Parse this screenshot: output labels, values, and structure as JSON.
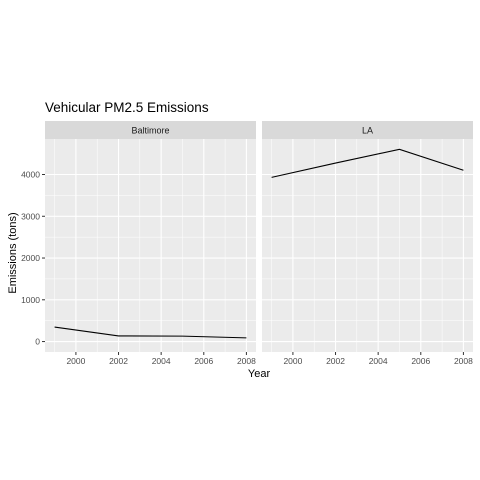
{
  "chart_data": {
    "type": "line",
    "title": "Vehicular PM2.5 Emissions",
    "xlabel": "Year",
    "ylabel": "Emissions (tons)",
    "facet_by": [
      "Baltimore",
      "LA"
    ],
    "xlim": [
      1998.55,
      2008.45
    ],
    "ylim": [
      -250,
      4850
    ],
    "x_ticks": [
      2000,
      2002,
      2004,
      2006,
      2008
    ],
    "y_ticks": [
      0,
      1000,
      2000,
      3000,
      4000
    ],
    "grid": true,
    "series": [
      {
        "name": "Baltimore",
        "x": [
          1999,
          2002,
          2005,
          2008
        ],
        "values": [
          347,
          134,
          130,
          88
        ]
      },
      {
        "name": "LA",
        "x": [
          1999,
          2002,
          2005,
          2008
        ],
        "values": [
          3931,
          4274,
          4602,
          4101
        ]
      }
    ]
  },
  "colors": {
    "panel_background": "#ebebeb",
    "strip_background": "#d9d9d9",
    "grid_major": "#ffffff",
    "line": "#000000"
  }
}
